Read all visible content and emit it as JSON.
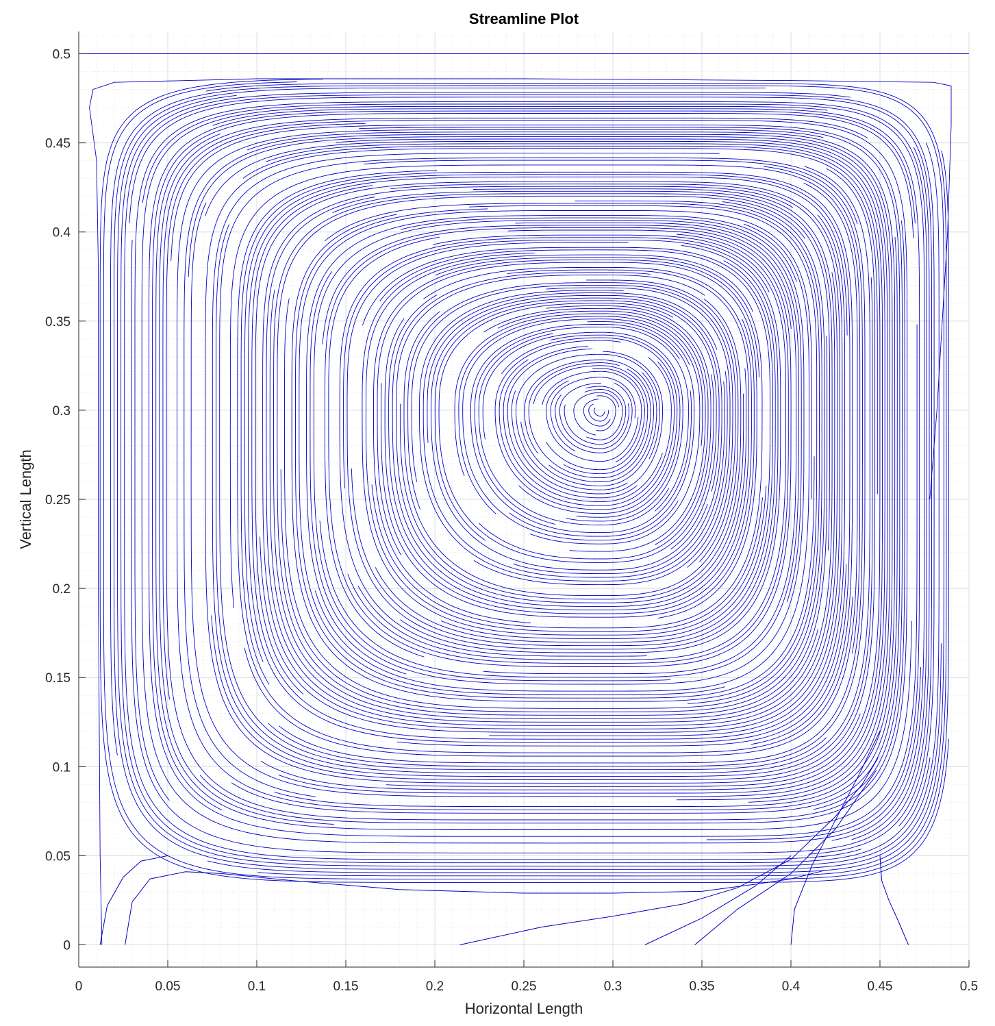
{
  "chart_data": {
    "type": "streamline",
    "title": "Streamline Plot",
    "xlabel": "Horizontal Length",
    "ylabel": "Vertical Length",
    "xlim": [
      0,
      0.5
    ],
    "ylim": [
      -0.0125,
      0.5125
    ],
    "xticks": [
      0,
      0.05,
      0.1,
      0.15,
      0.2,
      0.25,
      0.3,
      0.35,
      0.4,
      0.45,
      0.5
    ],
    "xtick_labels": [
      "0",
      "0.05",
      "0.1",
      "0.15",
      "0.2",
      "0.25",
      "0.3",
      "0.35",
      "0.4",
      "0.45",
      "0.5"
    ],
    "yticks": [
      0,
      0.05,
      0.1,
      0.15,
      0.2,
      0.25,
      0.3,
      0.35,
      0.4,
      0.45,
      0.5
    ],
    "ytick_labels": [
      "0",
      "0.05",
      "0.1",
      "0.15",
      "0.2",
      "0.25",
      "0.3",
      "0.35",
      "0.4",
      "0.45",
      "0.5"
    ],
    "grid": true,
    "minor_grid": true,
    "line_color": "#0000c8",
    "vortex_center": [
      0.293,
      0.3
    ],
    "lid_line": {
      "y": 0.5,
      "x": [
        0,
        0.5
      ]
    },
    "series": [
      {
        "points": [
          [
            0.012,
            0.0
          ],
          [
            0.016,
            0.022
          ],
          [
            0.025,
            0.038
          ],
          [
            0.035,
            0.047
          ],
          [
            0.05,
            0.05
          ]
        ]
      },
      {
        "points": [
          [
            0.026,
            0.0
          ],
          [
            0.03,
            0.024
          ],
          [
            0.04,
            0.037
          ],
          [
            0.06,
            0.041
          ],
          [
            0.08,
            0.04
          ],
          [
            0.12,
            0.036
          ],
          [
            0.18,
            0.031
          ],
          [
            0.25,
            0.029
          ],
          [
            0.3,
            0.029
          ],
          [
            0.35,
            0.03
          ],
          [
            0.38,
            0.034
          ],
          [
            0.4,
            0.037
          ],
          [
            0.42,
            0.042
          ]
        ]
      },
      {
        "points": [
          [
            0.214,
            0.0
          ],
          [
            0.26,
            0.01
          ],
          [
            0.3,
            0.016
          ],
          [
            0.34,
            0.023
          ],
          [
            0.37,
            0.032
          ],
          [
            0.4,
            0.048
          ],
          [
            0.425,
            0.072
          ],
          [
            0.44,
            0.09
          ],
          [
            0.449,
            0.105
          ]
        ]
      },
      {
        "points": [
          [
            0.318,
            0.0
          ],
          [
            0.35,
            0.015
          ],
          [
            0.38,
            0.033
          ],
          [
            0.4,
            0.05
          ]
        ]
      },
      {
        "points": [
          [
            0.346,
            0.0
          ],
          [
            0.37,
            0.02
          ],
          [
            0.4,
            0.04
          ],
          [
            0.425,
            0.065
          ],
          [
            0.448,
            0.098
          ]
        ]
      },
      {
        "points": [
          [
            0.4,
            0.0
          ],
          [
            0.402,
            0.02
          ],
          [
            0.412,
            0.045
          ],
          [
            0.425,
            0.07
          ],
          [
            0.438,
            0.095
          ],
          [
            0.45,
            0.12
          ]
        ]
      },
      {
        "points": [
          [
            0.45,
            0.05
          ],
          [
            0.451,
            0.036
          ],
          [
            0.455,
            0.025
          ],
          [
            0.46,
            0.014
          ],
          [
            0.466,
            0.0
          ]
        ]
      }
    ]
  }
}
